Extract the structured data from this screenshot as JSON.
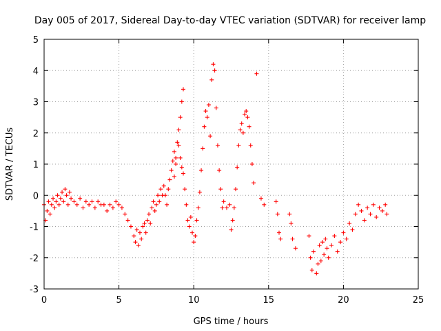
{
  "chart_data": {
    "type": "scatter",
    "title": "Day 005 of 2017, Sidereal Day-to-day VTEC variation (SDTVAR) for receiver lamp",
    "xlabel": "GPS time / hours",
    "ylabel": "SDTVAR / TECUs",
    "xlim": [
      0,
      25
    ],
    "ylim": [
      -3,
      5
    ],
    "x_ticks": [
      0,
      5,
      10,
      15,
      20,
      25
    ],
    "y_ticks": [
      -3,
      -2,
      -1,
      0,
      1,
      2,
      3,
      4,
      5
    ],
    "x_tick_labels": [
      "0",
      "5",
      "10",
      "15",
      "20",
      "25"
    ],
    "y_tick_labels": [
      "-3",
      "-2",
      "-1",
      "0",
      "1",
      "2",
      "3",
      "4",
      "5"
    ],
    "grid": true,
    "legend": "none",
    "marker": "+",
    "series": [
      {
        "name": "SDTVAR",
        "color": "#ff0000",
        "points": [
          [
            0.0,
            -0.3
          ],
          [
            0.1,
            -0.8
          ],
          [
            0.2,
            -0.5
          ],
          [
            0.3,
            -0.2
          ],
          [
            0.4,
            -0.6
          ],
          [
            0.5,
            -0.3
          ],
          [
            0.6,
            -0.1
          ],
          [
            0.7,
            -0.4
          ],
          [
            0.8,
            -0.2
          ],
          [
            0.9,
            0.0
          ],
          [
            1.0,
            -0.3
          ],
          [
            1.1,
            -0.1
          ],
          [
            1.2,
            0.1
          ],
          [
            1.3,
            -0.2
          ],
          [
            1.4,
            0.2
          ],
          [
            1.5,
            0.0
          ],
          [
            1.6,
            -0.3
          ],
          [
            1.7,
            0.1
          ],
          [
            1.8,
            -0.1
          ],
          [
            2.0,
            -0.2
          ],
          [
            2.2,
            -0.3
          ],
          [
            2.4,
            -0.1
          ],
          [
            2.6,
            -0.4
          ],
          [
            2.8,
            -0.2
          ],
          [
            3.0,
            -0.3
          ],
          [
            3.2,
            -0.2
          ],
          [
            3.4,
            -0.4
          ],
          [
            3.6,
            -0.2
          ],
          [
            3.8,
            -0.3
          ],
          [
            4.0,
            -0.3
          ],
          [
            4.2,
            -0.5
          ],
          [
            4.4,
            -0.3
          ],
          [
            4.6,
            -0.4
          ],
          [
            4.8,
            -0.2
          ],
          [
            5.0,
            -0.3
          ],
          [
            5.2,
            -0.4
          ],
          [
            5.4,
            -0.6
          ],
          [
            5.6,
            -0.8
          ],
          [
            5.8,
            -1.0
          ],
          [
            6.0,
            -1.3
          ],
          [
            6.1,
            -1.5
          ],
          [
            6.2,
            -1.1
          ],
          [
            6.3,
            -1.6
          ],
          [
            6.4,
            -1.2
          ],
          [
            6.5,
            -1.4
          ],
          [
            6.6,
            -1.0
          ],
          [
            6.7,
            -0.9
          ],
          [
            6.8,
            -1.2
          ],
          [
            6.9,
            -0.8
          ],
          [
            7.0,
            -0.6
          ],
          [
            7.1,
            -0.9
          ],
          [
            7.2,
            -0.4
          ],
          [
            7.3,
            -0.2
          ],
          [
            7.4,
            -0.5
          ],
          [
            7.5,
            -0.3
          ],
          [
            7.6,
            0.0
          ],
          [
            7.7,
            -0.2
          ],
          [
            7.8,
            0.2
          ],
          [
            7.9,
            0.0
          ],
          [
            8.0,
            0.3
          ],
          [
            8.1,
            0.0
          ],
          [
            8.2,
            -0.3
          ],
          [
            8.3,
            0.2
          ],
          [
            8.4,
            0.5
          ],
          [
            8.5,
            0.8
          ],
          [
            8.6,
            1.1
          ],
          [
            8.7,
            1.4
          ],
          [
            8.8,
            1.0
          ],
          [
            8.9,
            1.7
          ],
          [
            9.0,
            2.1
          ],
          [
            9.1,
            2.5
          ],
          [
            9.2,
            3.0
          ],
          [
            9.3,
            3.4
          ],
          [
            8.7,
            0.6
          ],
          [
            8.8,
            1.2
          ],
          [
            9.0,
            1.6
          ],
          [
            9.1,
            1.2
          ],
          [
            9.2,
            0.9
          ],
          [
            9.3,
            0.7
          ],
          [
            9.4,
            0.2
          ],
          [
            9.5,
            -0.3
          ],
          [
            9.6,
            -0.8
          ],
          [
            9.7,
            -1.0
          ],
          [
            9.8,
            -0.7
          ],
          [
            9.9,
            -1.2
          ],
          [
            10.0,
            -1.5
          ],
          [
            10.1,
            -1.3
          ],
          [
            10.2,
            -0.8
          ],
          [
            10.3,
            -0.4
          ],
          [
            10.4,
            0.1
          ],
          [
            10.5,
            0.8
          ],
          [
            10.6,
            1.5
          ],
          [
            10.7,
            2.2
          ],
          [
            10.8,
            2.7
          ],
          [
            10.9,
            2.5
          ],
          [
            11.0,
            2.9
          ],
          [
            11.1,
            1.9
          ],
          [
            11.2,
            3.7
          ],
          [
            11.3,
            4.2
          ],
          [
            11.4,
            4.0
          ],
          [
            11.5,
            2.8
          ],
          [
            11.6,
            1.6
          ],
          [
            11.7,
            0.8
          ],
          [
            11.8,
            0.2
          ],
          [
            11.9,
            -0.4
          ],
          [
            12.0,
            -0.2
          ],
          [
            12.2,
            -0.4
          ],
          [
            12.4,
            -0.3
          ],
          [
            12.5,
            -1.1
          ],
          [
            12.6,
            -0.8
          ],
          [
            12.7,
            -0.4
          ],
          [
            12.8,
            0.2
          ],
          [
            12.9,
            0.9
          ],
          [
            13.0,
            1.6
          ],
          [
            13.1,
            2.1
          ],
          [
            13.2,
            2.3
          ],
          [
            13.3,
            2.0
          ],
          [
            13.4,
            2.6
          ],
          [
            13.5,
            2.7
          ],
          [
            13.6,
            2.5
          ],
          [
            13.7,
            2.2
          ],
          [
            13.8,
            1.6
          ],
          [
            13.9,
            1.0
          ],
          [
            14.0,
            0.4
          ],
          [
            14.2,
            3.9
          ],
          [
            14.5,
            -0.1
          ],
          [
            14.7,
            -0.3
          ],
          [
            15.5,
            -0.2
          ],
          [
            15.6,
            -0.6
          ],
          [
            15.7,
            -1.2
          ],
          [
            15.8,
            -1.4
          ],
          [
            16.4,
            -0.6
          ],
          [
            16.5,
            -0.9
          ],
          [
            16.6,
            -1.4
          ],
          [
            16.8,
            -1.7
          ],
          [
            17.7,
            -1.3
          ],
          [
            17.8,
            -2.0
          ],
          [
            17.9,
            -2.4
          ],
          [
            18.0,
            -1.8
          ],
          [
            18.2,
            -2.5
          ],
          [
            18.3,
            -2.2
          ],
          [
            18.4,
            -1.6
          ],
          [
            18.5,
            -2.1
          ],
          [
            18.6,
            -1.5
          ],
          [
            18.7,
            -1.9
          ],
          [
            18.8,
            -1.4
          ],
          [
            18.9,
            -1.7
          ],
          [
            19.0,
            -2.0
          ],
          [
            19.2,
            -1.6
          ],
          [
            19.4,
            -1.3
          ],
          [
            19.6,
            -1.8
          ],
          [
            19.8,
            -1.5
          ],
          [
            20.0,
            -1.2
          ],
          [
            20.2,
            -1.4
          ],
          [
            20.4,
            -0.9
          ],
          [
            20.6,
            -1.1
          ],
          [
            20.8,
            -0.6
          ],
          [
            21.0,
            -0.3
          ],
          [
            21.2,
            -0.5
          ],
          [
            21.4,
            -0.8
          ],
          [
            21.6,
            -0.4
          ],
          [
            21.8,
            -0.6
          ],
          [
            22.0,
            -0.3
          ],
          [
            22.2,
            -0.7
          ],
          [
            22.4,
            -0.4
          ],
          [
            22.6,
            -0.5
          ],
          [
            22.8,
            -0.3
          ],
          [
            22.9,
            -0.6
          ]
        ]
      }
    ]
  }
}
